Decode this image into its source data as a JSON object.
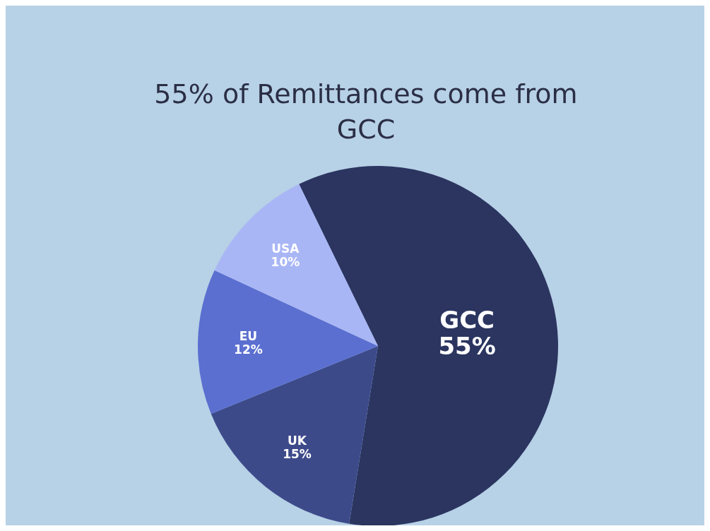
{
  "chart_data": {
    "type": "pie",
    "title": "55% of Remittances come from GCC",
    "categories": [
      "GCC",
      "UK",
      "EU",
      "USA"
    ],
    "values": [
      55,
      15,
      12,
      10
    ],
    "value_labels": [
      "55%",
      "15%",
      "12%",
      "10%"
    ],
    "colors": [
      "#2b3560",
      "#3d4a8a",
      "#5b6fd0",
      "#a9b6f5"
    ]
  }
}
